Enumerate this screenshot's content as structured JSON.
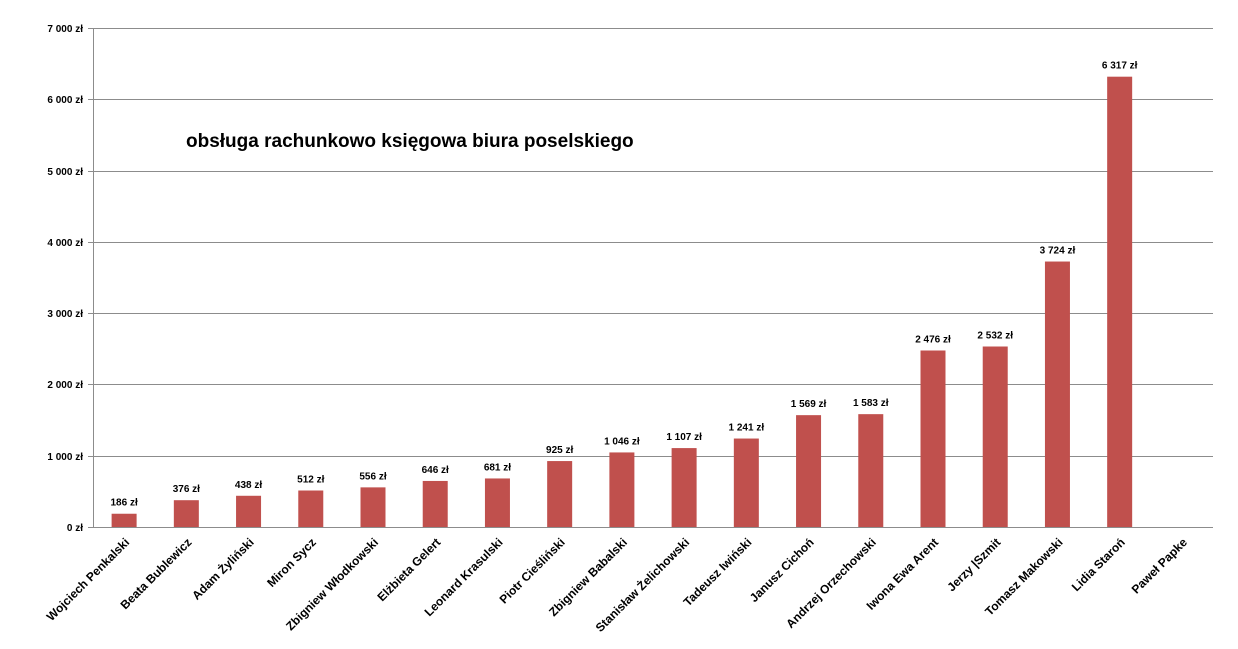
{
  "chart_data": {
    "type": "bar",
    "title": "obsługa rachunkowo księgowa biura poselskiego",
    "xlabel": "",
    "ylabel": "",
    "ylim": [
      0,
      7000
    ],
    "grid": true,
    "legend": "none",
    "bar_color": "#C0504D",
    "yticks": [
      "0 zł",
      "1 000 zł",
      "2 000 zł",
      "3 000 zł",
      "4 000 zł",
      "5 000 zł",
      "6 000 zł",
      "7 000 zł"
    ],
    "categories": [
      "Wojciech Penkalski",
      "Beata Bublewicz",
      "Adam Żyliński",
      "Miron Sycz",
      "Zbigniew Włodkowski",
      "Elżbieta Gelert",
      "Leonard Krasulski",
      "Piotr Cieśliński",
      "Zbigniew Babalski",
      "Stanisław Żelichowski",
      "Tadeusz Iwiński",
      "Janusz Cichoń",
      "Andrzej Orzechowski",
      "Iwona Ewa Arent",
      "Jerzy |Szmit",
      "Tomasz Makowski",
      "Lidia Staroń",
      "Paweł Papke"
    ],
    "values": [
      186,
      376,
      438,
      512,
      556,
      646,
      681,
      925,
      1046,
      1107,
      1241,
      1569,
      1583,
      2476,
      2532,
      3724,
      6317,
      0
    ],
    "data_labels": [
      "186 zł",
      "376 zł",
      "438 zł",
      "512 zł",
      "556 zł",
      "646 zł",
      "681 zł",
      "925 zł",
      "1 046 zł",
      "1 107 zł",
      "1 241 zł",
      "1 569 zł",
      "1 583 zł",
      "2 476 zł",
      "2 532 zł",
      "3 724 zł",
      "6 317 zł",
      ""
    ]
  }
}
